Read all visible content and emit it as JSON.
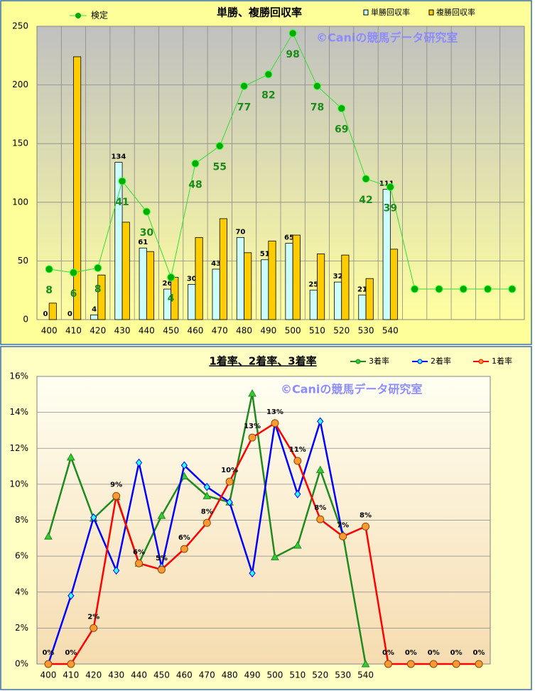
{
  "chart_data": [
    {
      "type": "bar",
      "title": "単勝、複勝回収率",
      "watermark": "©Caniの競馬データ研究室",
      "categories": [
        "400",
        "410",
        "420",
        "430",
        "440",
        "450",
        "460",
        "470",
        "480",
        "490",
        "500",
        "510",
        "520",
        "530",
        "540",
        null,
        null,
        null,
        null,
        null
      ],
      "series": [
        {
          "name": "検定",
          "type": "line",
          "color": "#33dd33",
          "marker_color": "#00aa00",
          "values": [
            43,
            40,
            44,
            118,
            92,
            36,
            133,
            148,
            199,
            209,
            244,
            199,
            180,
            120,
            113,
            26,
            26,
            26,
            26,
            26
          ],
          "annotations": [
            8,
            6,
            8,
            41,
            30,
            4,
            48,
            55,
            77,
            82,
            98,
            78,
            69,
            42,
            39,
            null,
            null,
            null,
            null,
            null
          ]
        },
        {
          "name": "単勝回収率",
          "color": "#ccffff",
          "show_value_labels": true,
          "values": [
            0,
            0,
            4,
            134,
            61,
            26,
            30,
            43,
            70,
            51,
            65,
            25,
            32,
            21,
            111,
            null,
            null,
            null,
            null,
            null
          ]
        },
        {
          "name": "複勝回収率",
          "color": "#ffcc00",
          "values": [
            14,
            224,
            38,
            83,
            58,
            36,
            70,
            86,
            57,
            67,
            72,
            56,
            55,
            35,
            60,
            null,
            null,
            null,
            null,
            null
          ]
        }
      ],
      "ylim": [
        0,
        250
      ],
      "yticks": [
        0,
        50,
        100,
        150,
        200,
        250
      ],
      "grid": true
    },
    {
      "type": "line",
      "title": "1着率、2着率、3着率",
      "watermark": "©Caniの競馬データ研究室",
      "categories": [
        "400",
        "410",
        "420",
        "430",
        "440",
        "450",
        "460",
        "470",
        "480",
        "490",
        "500",
        "510",
        "520",
        "530",
        "540",
        null,
        null,
        null,
        null,
        null
      ],
      "series": [
        {
          "name": "3着率",
          "color": "#1f8a1f",
          "marker": "triangle",
          "marker_color": "#33cc33",
          "values": [
            7.1,
            11.5,
            8.1,
            9.3,
            5.6,
            8.25,
            10.45,
            9.35,
            9.0,
            15.05,
            5.95,
            6.6,
            10.8,
            7.2,
            0,
            null,
            null,
            null,
            null,
            null
          ]
        },
        {
          "name": "2着率",
          "color": "#0000ff",
          "marker": "diamond",
          "marker_color": "#33ffff",
          "values": [
            0,
            3.8,
            8.15,
            5.2,
            11.2,
            5.4,
            11.05,
            9.85,
            9.0,
            5.05,
            13.4,
            9.45,
            13.5,
            7.1,
            null,
            null,
            null,
            null,
            null,
            null
          ]
        },
        {
          "name": "1着率",
          "color": "#ff0000",
          "marker": "circle",
          "marker_color": "#ff9933",
          "values": [
            0,
            0,
            2.0,
            9.35,
            5.6,
            5.25,
            6.4,
            7.85,
            10.15,
            12.6,
            13.4,
            11.3,
            8.05,
            7.1,
            7.65,
            0,
            0,
            0,
            0,
            0
          ],
          "value_labels": [
            "0%",
            "0%",
            "2%",
            "9%",
            "6%",
            "5%",
            "6%",
            "8%",
            "10%",
            "13%",
            "13%",
            "11%",
            "8%",
            "7%",
            "8%",
            "0%",
            "0%",
            "0%",
            "0%",
            "0%"
          ]
        }
      ],
      "ylim": [
        0,
        16
      ],
      "yticks": [
        {
          "value": 0,
          "label": "0%"
        },
        {
          "value": 2,
          "label": "2%"
        },
        {
          "value": 4,
          "label": "4%"
        },
        {
          "value": 6,
          "label": "6%"
        },
        {
          "value": 8,
          "label": "8%"
        },
        {
          "value": 10,
          "label": "10%"
        },
        {
          "value": 12,
          "label": "12%"
        },
        {
          "value": 14,
          "label": "14%"
        },
        {
          "value": 16,
          "label": "16%"
        }
      ],
      "grid": true
    }
  ]
}
